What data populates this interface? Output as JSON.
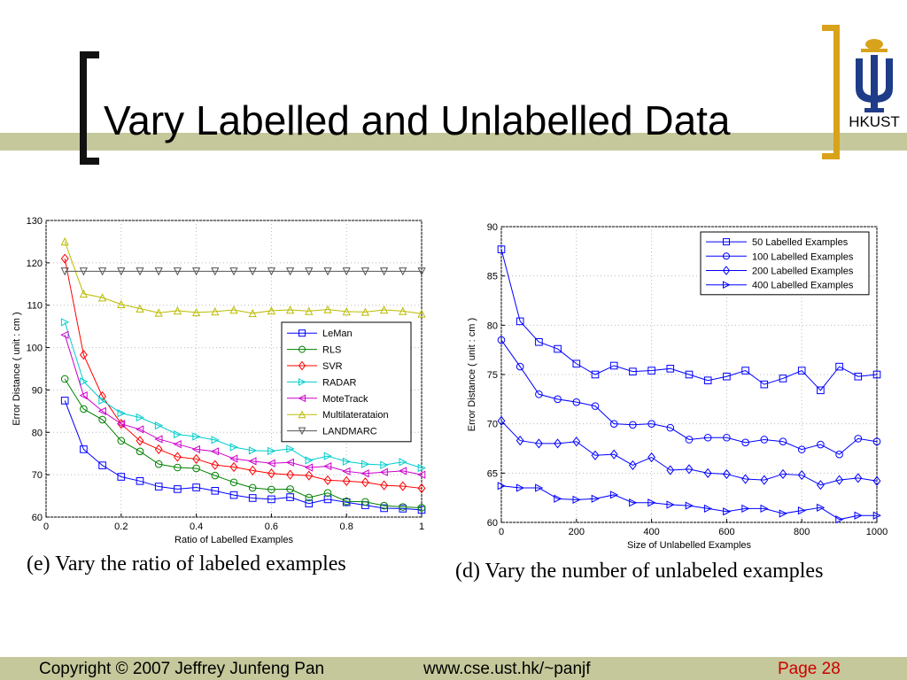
{
  "slide": {
    "title": "Vary Labelled and Unlabelled Data",
    "logo_text": "HKUST",
    "colors": {
      "stripe": "#c5c89a",
      "bracket_left": "#111111",
      "bracket_right": "#d9a21b",
      "page_number": "#cc0000"
    }
  },
  "captions": {
    "left": "(e)  Vary the ratio of labeled examples",
    "right": "(d)  Vary the number of unlabeled examples"
  },
  "footer": {
    "copyright": "Copyright © 2007 Jeffrey Junfeng Pan",
    "url": "www.cse.ust.hk/~panjf",
    "page": "Page 28"
  },
  "chart_data": [
    {
      "type": "line",
      "title": "",
      "xlabel": "Ratio of Labelled Examples",
      "ylabel": "Error Distance ( unit : cm )",
      "xlim": [
        0,
        1
      ],
      "ylim": [
        60,
        130
      ],
      "xticks": [
        0,
        0.2,
        0.4,
        0.6,
        0.8,
        1
      ],
      "xtick_labels": [
        "0",
        "0.2",
        "0.4",
        "0.6",
        "0.8",
        "1"
      ],
      "yticks": [
        60,
        70,
        80,
        90,
        100,
        110,
        120,
        130
      ],
      "ytick_labels": [
        "60",
        "70",
        "80",
        "90",
        "100",
        "110",
        "120",
        "130"
      ],
      "grid": true,
      "legend_position": "right",
      "x": [
        0.05,
        0.1,
        0.15,
        0.2,
        0.25,
        0.3,
        0.35,
        0.4,
        0.45,
        0.5,
        0.55,
        0.6,
        0.65,
        0.7,
        0.75,
        0.8,
        0.85,
        0.9,
        0.95,
        1.0
      ],
      "series": [
        {
          "name": "LeMan",
          "marker": "square",
          "color": "#0000ff",
          "values": [
            87.5,
            76,
            72.2,
            69.5,
            68.5,
            67.2,
            66.6,
            67,
            66.2,
            65.2,
            64.5,
            64.2,
            64.7,
            63.2,
            64.2,
            63.5,
            62.8,
            62.1,
            62,
            61.7
          ]
        },
        {
          "name": "RLS",
          "marker": "circle",
          "color": "#008000",
          "values": [
            92.6,
            85.5,
            83,
            78,
            75.5,
            72.5,
            71.7,
            71.5,
            69.8,
            68.2,
            66.9,
            66.5,
            66.6,
            64.6,
            65.7,
            63.7,
            63.6,
            62.7,
            62.4,
            62.2
          ]
        },
        {
          "name": "SVR",
          "marker": "diamond",
          "color": "#ff0000",
          "values": [
            121,
            98.3,
            88.5,
            82,
            78,
            76,
            74.2,
            73.7,
            72.3,
            71.8,
            71,
            70.3,
            70,
            69.8,
            68.7,
            68.5,
            68.2,
            67.5,
            67.3,
            66.8
          ]
        },
        {
          "name": "RADAR",
          "marker": "triangle-right",
          "color": "#00cccc",
          "values": [
            106,
            92,
            87.5,
            84.5,
            83.5,
            81.6,
            79.5,
            79,
            78.2,
            76.5,
            75.7,
            75.6,
            76.1,
            73.4,
            74.4,
            73.1,
            72.5,
            72.3,
            73,
            71.6
          ]
        },
        {
          "name": "MoteTrack",
          "marker": "triangle-left",
          "color": "#cc00cc",
          "values": [
            103,
            88.7,
            85,
            82,
            80.7,
            78.4,
            77.2,
            76,
            75.5,
            73.8,
            73.2,
            72.7,
            72.9,
            71.7,
            72,
            70.8,
            70.3,
            70.6,
            70.9,
            70
          ]
        },
        {
          "name": "Multilaterataion",
          "marker": "triangle-up",
          "color": "#bbbb00",
          "values": [
            125,
            112.7,
            111.8,
            110.2,
            109.2,
            108.2,
            108.7,
            108.3,
            108.5,
            108.9,
            108.1,
            108.7,
            108.9,
            108.6,
            109,
            108.5,
            108.4,
            108.9,
            108.6,
            108
          ]
        },
        {
          "name": "LANDMARC",
          "marker": "triangle-down",
          "color": "#555555",
          "values": [
            118,
            118,
            118,
            118,
            118,
            118,
            118,
            118,
            118,
            118,
            118,
            118,
            118,
            118,
            118,
            118,
            118,
            118,
            118,
            118
          ]
        }
      ]
    },
    {
      "type": "line",
      "title": "",
      "xlabel": "Size of Unlabelled Examples",
      "ylabel": "Error Distance ( unit : cm )",
      "xlim": [
        0,
        1000
      ],
      "ylim": [
        60,
        90
      ],
      "xticks": [
        0,
        200,
        400,
        600,
        800,
        1000
      ],
      "xtick_labels": [
        "0",
        "200",
        "400",
        "600",
        "800",
        "1000"
      ],
      "yticks": [
        60,
        65,
        70,
        75,
        80,
        85,
        90
      ],
      "ytick_labels": [
        "60",
        "65",
        "70",
        "75",
        "80",
        "85",
        "90"
      ],
      "grid": true,
      "legend_position": "top-right",
      "x": [
        0,
        50,
        100,
        150,
        200,
        250,
        300,
        350,
        400,
        450,
        500,
        550,
        600,
        650,
        700,
        750,
        800,
        850,
        900,
        950,
        1000
      ],
      "series": [
        {
          "name": "50 Labelled Examples",
          "marker": "square",
          "color": "#0000ff",
          "values": [
            87.7,
            80.4,
            78.3,
            77.6,
            76.1,
            75,
            75.9,
            75.3,
            75.4,
            75.6,
            75,
            74.4,
            74.8,
            75.4,
            74,
            74.6,
            75.4,
            73.4,
            75.8,
            74.8,
            75
          ]
        },
        {
          "name": "100 Labelled Examples",
          "marker": "circle",
          "color": "#0000ff",
          "values": [
            78.5,
            75.8,
            73,
            72.5,
            72.2,
            71.8,
            70,
            69.9,
            70,
            69.6,
            68.4,
            68.6,
            68.6,
            68.1,
            68.4,
            68.2,
            67.4,
            67.9,
            66.9,
            68.5,
            68.2
          ]
        },
        {
          "name": "200 Labelled Examples",
          "marker": "diamond",
          "color": "#0000ff",
          "values": [
            70.3,
            68.3,
            68,
            68,
            68.2,
            66.8,
            66.9,
            65.8,
            66.6,
            65.3,
            65.4,
            65,
            64.9,
            64.4,
            64.3,
            64.9,
            64.8,
            63.8,
            64.3,
            64.5,
            64.2
          ]
        },
        {
          "name": "400 Labelled Examples",
          "marker": "triangle-right",
          "color": "#0000ff",
          "values": [
            63.7,
            63.5,
            63.5,
            62.4,
            62.3,
            62.4,
            62.8,
            62,
            62,
            61.8,
            61.7,
            61.4,
            61.1,
            61.4,
            61.4,
            60.9,
            61.2,
            61.5,
            60.3,
            60.7,
            60.7
          ]
        }
      ]
    }
  ]
}
